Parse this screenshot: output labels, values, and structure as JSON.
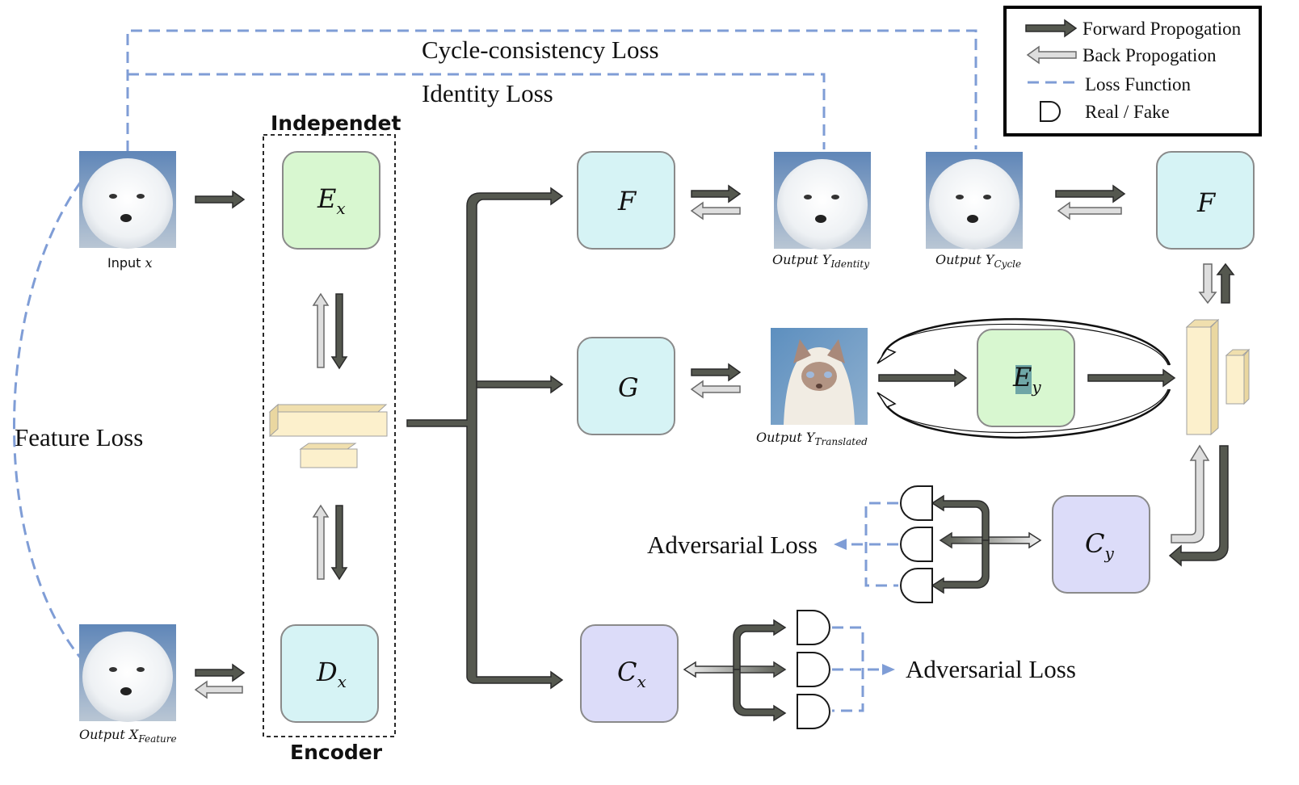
{
  "losses": {
    "cycle": "Cycle-consistency Loss",
    "identity": "Identity Loss",
    "feature": "Feature Loss",
    "adversarial_y": "Adversarial Loss",
    "adversarial_x": "Adversarial Loss"
  },
  "encoder": {
    "title_top": "Independet",
    "title_bottom": "Encoder"
  },
  "blocks": {
    "ex": {
      "main": "E",
      "sub": "x"
    },
    "dx": {
      "main": "D",
      "sub": "x"
    },
    "f1": {
      "main": "F"
    },
    "g": {
      "main": "G"
    },
    "cx": {
      "main": "C",
      "sub": "x"
    },
    "f2": {
      "main": "F"
    },
    "ey": {
      "main": "E",
      "sub": "y"
    },
    "cy": {
      "main": "C",
      "sub": "y"
    }
  },
  "images": {
    "input_x": {
      "prefix": "Input ",
      "var": "x"
    },
    "output_feature": {
      "prefix": "Output ",
      "var": "X",
      "sub": "Feature"
    },
    "output_identity": {
      "prefix": "Output ",
      "var": "Y",
      "sub": "Identity"
    },
    "output_cycle": {
      "prefix": "Output ",
      "var": "Y",
      "sub": "Cycle"
    },
    "output_translated": {
      "prefix": "Output ",
      "var": "Y",
      "sub": "Translated"
    }
  },
  "legend": {
    "items": [
      "Forward Propogation",
      "Back Propogation",
      "Loss Function",
      "Real / Fake"
    ]
  },
  "colors": {
    "encoder_box": "#d8f7d0",
    "generator_box": "#d6f3f5",
    "critic_box": "#dcdcf9",
    "feature_block": "#fcf0cc",
    "loss_dash": "#7f9dd6",
    "forward_arrow": "#55584f",
    "back_arrow": "#dedede"
  }
}
